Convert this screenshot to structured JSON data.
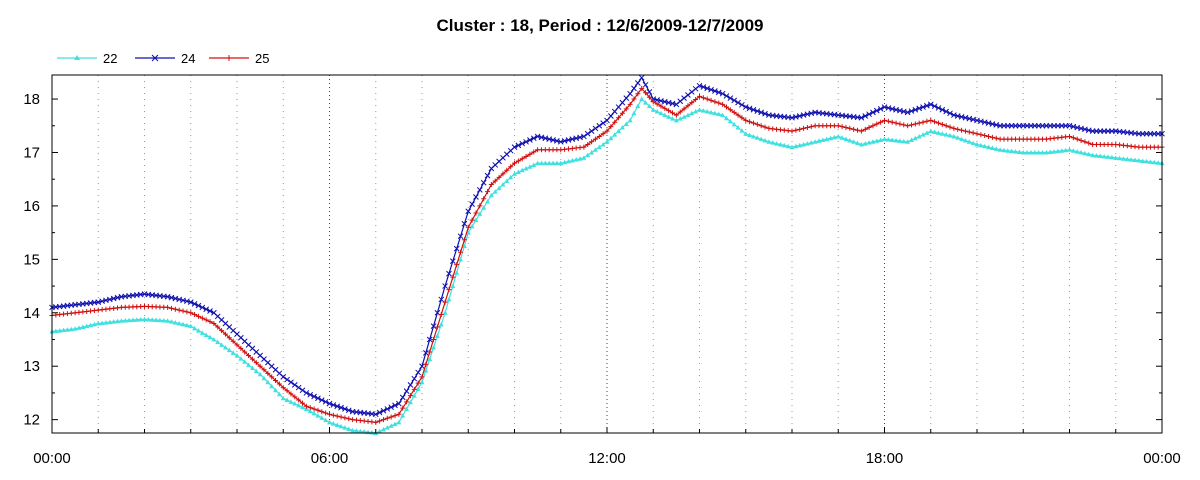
{
  "chart_data": {
    "type": "line",
    "title": "Cluster : 18, Period : 12/6/2009-12/7/2009",
    "xlabel": "",
    "ylabel": "",
    "x_ticks": [
      "00:00",
      "06:00",
      "12:00",
      "18:00",
      "00:00"
    ],
    "x_range_hours": [
      0,
      24
    ],
    "ylim": [
      11.75,
      18.45
    ],
    "y_ticks": [
      12,
      13,
      14,
      15,
      16,
      17,
      18
    ],
    "grid": "dotted vertical lines",
    "legend_position": "top-left",
    "series": [
      {
        "name": "22",
        "color": "#40e0e0",
        "marker": "triangle",
        "points": [
          [
            0,
            13.65
          ],
          [
            0.5,
            13.7
          ],
          [
            1,
            13.8
          ],
          [
            1.5,
            13.85
          ],
          [
            2,
            13.88
          ],
          [
            2.5,
            13.85
          ],
          [
            3,
            13.75
          ],
          [
            3.5,
            13.5
          ],
          [
            4,
            13.2
          ],
          [
            4.5,
            12.85
          ],
          [
            5,
            12.4
          ],
          [
            5.5,
            12.2
          ],
          [
            6,
            11.95
          ],
          [
            6.5,
            11.8
          ],
          [
            7,
            11.75
          ],
          [
            7.5,
            11.95
          ],
          [
            8,
            12.7
          ],
          [
            8.5,
            14.0
          ],
          [
            9,
            15.5
          ],
          [
            9.5,
            16.2
          ],
          [
            10,
            16.6
          ],
          [
            10.5,
            16.8
          ],
          [
            11,
            16.8
          ],
          [
            11.5,
            16.9
          ],
          [
            12,
            17.2
          ],
          [
            12.5,
            17.6
          ],
          [
            12.75,
            18.0
          ],
          [
            13,
            17.8
          ],
          [
            13.5,
            17.6
          ],
          [
            14,
            17.8
          ],
          [
            14.5,
            17.7
          ],
          [
            15,
            17.35
          ],
          [
            15.5,
            17.2
          ],
          [
            16,
            17.1
          ],
          [
            16.5,
            17.2
          ],
          [
            17,
            17.3
          ],
          [
            17.5,
            17.15
          ],
          [
            18,
            17.25
          ],
          [
            18.5,
            17.2
          ],
          [
            19,
            17.4
          ],
          [
            19.5,
            17.3
          ],
          [
            20,
            17.15
          ],
          [
            20.5,
            17.05
          ],
          [
            21,
            17.0
          ],
          [
            21.5,
            17.0
          ],
          [
            22,
            17.05
          ],
          [
            22.5,
            16.95
          ],
          [
            23,
            16.9
          ],
          [
            23.5,
            16.85
          ],
          [
            24,
            16.8
          ]
        ]
      },
      {
        "name": "24",
        "color": "#1010b0",
        "marker": "x",
        "points": [
          [
            0,
            14.1
          ],
          [
            0.5,
            14.15
          ],
          [
            1,
            14.2
          ],
          [
            1.5,
            14.3
          ],
          [
            2,
            14.35
          ],
          [
            2.5,
            14.3
          ],
          [
            3,
            14.2
          ],
          [
            3.5,
            14.0
          ],
          [
            4,
            13.6
          ],
          [
            4.5,
            13.2
          ],
          [
            5,
            12.8
          ],
          [
            5.5,
            12.5
          ],
          [
            6,
            12.3
          ],
          [
            6.5,
            12.15
          ],
          [
            7,
            12.1
          ],
          [
            7.5,
            12.3
          ],
          [
            8,
            13.0
          ],
          [
            8.5,
            14.5
          ],
          [
            9,
            15.9
          ],
          [
            9.5,
            16.7
          ],
          [
            10,
            17.1
          ],
          [
            10.5,
            17.3
          ],
          [
            11,
            17.2
          ],
          [
            11.5,
            17.3
          ],
          [
            12,
            17.6
          ],
          [
            12.5,
            18.1
          ],
          [
            12.75,
            18.4
          ],
          [
            13,
            18.0
          ],
          [
            13.5,
            17.9
          ],
          [
            14,
            18.25
          ],
          [
            14.5,
            18.1
          ],
          [
            15,
            17.85
          ],
          [
            15.5,
            17.7
          ],
          [
            16,
            17.65
          ],
          [
            16.5,
            17.75
          ],
          [
            17,
            17.7
          ],
          [
            17.5,
            17.65
          ],
          [
            18,
            17.85
          ],
          [
            18.5,
            17.75
          ],
          [
            19,
            17.9
          ],
          [
            19.5,
            17.7
          ],
          [
            20,
            17.6
          ],
          [
            20.5,
            17.5
          ],
          [
            21,
            17.5
          ],
          [
            21.5,
            17.5
          ],
          [
            22,
            17.5
          ],
          [
            22.5,
            17.4
          ],
          [
            23,
            17.4
          ],
          [
            23.5,
            17.35
          ],
          [
            24,
            17.35
          ]
        ]
      },
      {
        "name": "25",
        "color": "#d01010",
        "marker": "plus",
        "points": [
          [
            0,
            13.95
          ],
          [
            0.5,
            14.0
          ],
          [
            1,
            14.05
          ],
          [
            1.5,
            14.1
          ],
          [
            2,
            14.12
          ],
          [
            2.5,
            14.1
          ],
          [
            3,
            14.0
          ],
          [
            3.5,
            13.8
          ],
          [
            4,
            13.4
          ],
          [
            4.5,
            13.0
          ],
          [
            5,
            12.6
          ],
          [
            5.5,
            12.25
          ],
          [
            6,
            12.1
          ],
          [
            6.5,
            12.0
          ],
          [
            7,
            11.95
          ],
          [
            7.5,
            12.1
          ],
          [
            8,
            12.8
          ],
          [
            8.5,
            14.2
          ],
          [
            9,
            15.6
          ],
          [
            9.5,
            16.4
          ],
          [
            10,
            16.8
          ],
          [
            10.5,
            17.05
          ],
          [
            11,
            17.05
          ],
          [
            11.5,
            17.1
          ],
          [
            12,
            17.4
          ],
          [
            12.5,
            17.9
          ],
          [
            12.75,
            18.2
          ],
          [
            13,
            17.95
          ],
          [
            13.5,
            17.7
          ],
          [
            14,
            18.05
          ],
          [
            14.5,
            17.9
          ],
          [
            15,
            17.6
          ],
          [
            15.5,
            17.45
          ],
          [
            16,
            17.4
          ],
          [
            16.5,
            17.5
          ],
          [
            17,
            17.5
          ],
          [
            17.5,
            17.4
          ],
          [
            18,
            17.6
          ],
          [
            18.5,
            17.5
          ],
          [
            19,
            17.6
          ],
          [
            19.5,
            17.45
          ],
          [
            20,
            17.35
          ],
          [
            20.5,
            17.25
          ],
          [
            21,
            17.25
          ],
          [
            21.5,
            17.25
          ],
          [
            22,
            17.3
          ],
          [
            22.5,
            17.15
          ],
          [
            23,
            17.15
          ],
          [
            23.5,
            17.1
          ],
          [
            24,
            17.1
          ]
        ]
      }
    ]
  }
}
